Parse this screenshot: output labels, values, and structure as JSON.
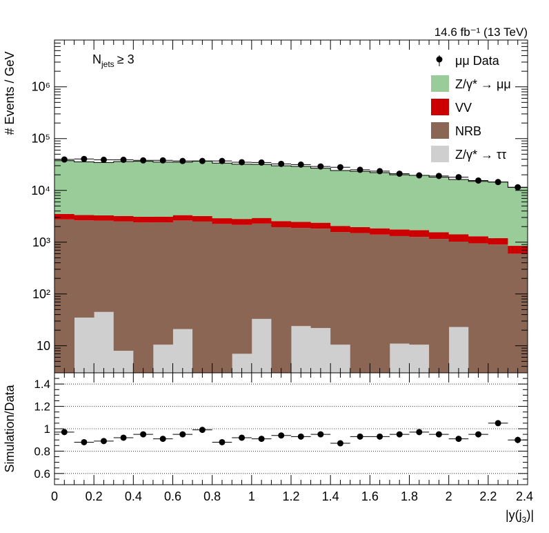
{
  "chart_data": [
    {
      "type": "bar",
      "stacked": true,
      "y_scale": "log",
      "luminosity_label": "14.6 fb⁻¹ (13 TeV)",
      "selection_label": "N_jets ≥ 3",
      "selection_main": "N",
      "selection_sub": "jets",
      "selection_tail": "≥ 3",
      "ylabel": "# Events / GeV",
      "xlim": [
        0,
        2.4
      ],
      "ylim": [
        3,
        8000000
      ],
      "y_ticks": [
        {
          "value": 10,
          "label": "10"
        },
        {
          "value": 100,
          "label": "10²"
        },
        {
          "value": 1000,
          "label": "10³"
        },
        {
          "value": 10000,
          "label": "10⁴"
        },
        {
          "value": 100000,
          "label": "10⁵"
        },
        {
          "value": 1000000,
          "label": "10⁶"
        }
      ],
      "bin_edges": [
        0,
        0.1,
        0.2,
        0.3,
        0.4,
        0.5,
        0.6,
        0.7,
        0.8,
        0.9,
        1.0,
        1.1,
        1.2,
        1.3,
        1.4,
        1.5,
        1.6,
        1.7,
        1.8,
        1.9,
        2.0,
        2.1,
        2.2,
        2.3,
        2.4
      ],
      "legend_position": "top-right",
      "legend": [
        {
          "label": "μμ Data",
          "kind": "marker"
        },
        {
          "label": "Z/γ* → μμ",
          "kind": "fill",
          "color": "#99cc99"
        },
        {
          "label": "VV",
          "kind": "fill",
          "color": "#cc0000"
        },
        {
          "label": "NRB",
          "kind": "fill",
          "color": "#8b6655"
        },
        {
          "label": "Z/γ* → ττ",
          "kind": "fill",
          "color": "#cfcfcf"
        }
      ],
      "series": [
        {
          "name": "Z/γ* → ττ",
          "color": "#cfcfcf",
          "values": [
            0,
            35,
            45,
            8,
            0,
            10.5,
            21,
            0,
            0,
            7,
            33,
            0,
            24,
            22,
            10.5,
            0,
            0,
            11,
            10.5,
            0,
            23,
            0,
            0,
            0
          ]
        },
        {
          "name": "NRB",
          "color": "#8b6655",
          "values": [
            2750,
            2600,
            2550,
            2500,
            2400,
            2400,
            2600,
            2500,
            2250,
            2150,
            2250,
            1950,
            1850,
            1800,
            1550,
            1500,
            1400,
            1300,
            1250,
            1150,
            1000,
            950,
            900,
            600
          ]
        },
        {
          "name": "VV",
          "color": "#cc0000",
          "values": [
            750,
            700,
            700,
            700,
            700,
            700,
            700,
            700,
            650,
            650,
            650,
            600,
            600,
            550,
            500,
            450,
            450,
            450,
            450,
            400,
            400,
            350,
            300,
            250
          ]
        },
        {
          "name": "Z/γ* → μμ",
          "color": "#99cc99",
          "values": [
            34000,
            32300,
            31300,
            32800,
            33300,
            32100,
            31700,
            33500,
            30700,
            29200,
            28800,
            27300,
            26600,
            24400,
            22100,
            21400,
            20200,
            18300,
            17800,
            16500,
            14800,
            13600,
            13300,
            10600
          ]
        }
      ],
      "data_points": [
        {
          "x": 0.05,
          "y": 39500
        },
        {
          "x": 0.15,
          "y": 40500
        },
        {
          "x": 0.25,
          "y": 39000
        },
        {
          "x": 0.35,
          "y": 39000
        },
        {
          "x": 0.45,
          "y": 38000
        },
        {
          "x": 0.55,
          "y": 38000
        },
        {
          "x": 0.65,
          "y": 37000
        },
        {
          "x": 0.75,
          "y": 37000
        },
        {
          "x": 0.85,
          "y": 37000
        },
        {
          "x": 0.95,
          "y": 35000
        },
        {
          "x": 1.05,
          "y": 34500
        },
        {
          "x": 1.15,
          "y": 32500
        },
        {
          "x": 1.25,
          "y": 31500
        },
        {
          "x": 1.35,
          "y": 29000
        },
        {
          "x": 1.45,
          "y": 28000
        },
        {
          "x": 1.55,
          "y": 25000
        },
        {
          "x": 1.65,
          "y": 23500
        },
        {
          "x": 1.75,
          "y": 21000
        },
        {
          "x": 1.85,
          "y": 19500
        },
        {
          "x": 1.95,
          "y": 19000
        },
        {
          "x": 2.05,
          "y": 18000
        },
        {
          "x": 2.15,
          "y": 15500
        },
        {
          "x": 2.25,
          "y": 14500
        },
        {
          "x": 2.35,
          "y": 11500
        }
      ]
    },
    {
      "type": "scatter",
      "ylabel": "Simulation/Data",
      "xlabel": "|y(j₃)|",
      "xlabel_main": "|y(j",
      "xlabel_sub": "3",
      "xlabel_tail": ")|",
      "xlim": [
        0,
        2.4
      ],
      "ylim": [
        0.5,
        1.5
      ],
      "x_ticks": [
        {
          "value": 0,
          "label": "0"
        },
        {
          "value": 0.2,
          "label": "0.2"
        },
        {
          "value": 0.4,
          "label": "0.4"
        },
        {
          "value": 0.6,
          "label": "0.6"
        },
        {
          "value": 0.8,
          "label": "0.8"
        },
        {
          "value": 1.0,
          "label": "1"
        },
        {
          "value": 1.2,
          "label": "1.2"
        },
        {
          "value": 1.4,
          "label": "1.4"
        },
        {
          "value": 1.6,
          "label": "1.6"
        },
        {
          "value": 1.8,
          "label": "1.8"
        },
        {
          "value": 2.0,
          "label": "2"
        },
        {
          "value": 2.2,
          "label": "2.2"
        },
        {
          "value": 2.4,
          "label": "2.4"
        }
      ],
      "y_ticks": [
        {
          "value": 0.6,
          "label": "0.6"
        },
        {
          "value": 0.8,
          "label": "0.8"
        },
        {
          "value": 1.0,
          "label": "1"
        },
        {
          "value": 1.2,
          "label": "1.2"
        },
        {
          "value": 1.4,
          "label": "1.4"
        }
      ],
      "grid_y": [
        0.6,
        0.8,
        1.0,
        1.2,
        1.4
      ],
      "points": [
        {
          "x": 0.05,
          "y": 0.97,
          "err": 0.02
        },
        {
          "x": 0.15,
          "y": 0.88,
          "err": 0.015
        },
        {
          "x": 0.25,
          "y": 0.89,
          "err": 0.015
        },
        {
          "x": 0.35,
          "y": 0.92,
          "err": 0.015
        },
        {
          "x": 0.45,
          "y": 0.95,
          "err": 0.015
        },
        {
          "x": 0.55,
          "y": 0.91,
          "err": 0.015
        },
        {
          "x": 0.65,
          "y": 0.95,
          "err": 0.015
        },
        {
          "x": 0.75,
          "y": 0.99,
          "err": 0.015
        },
        {
          "x": 0.85,
          "y": 0.88,
          "err": 0.015
        },
        {
          "x": 0.95,
          "y": 0.92,
          "err": 0.015
        },
        {
          "x": 1.05,
          "y": 0.91,
          "err": 0.015
        },
        {
          "x": 1.15,
          "y": 0.94,
          "err": 0.015
        },
        {
          "x": 1.25,
          "y": 0.93,
          "err": 0.015
        },
        {
          "x": 1.35,
          "y": 0.95,
          "err": 0.015
        },
        {
          "x": 1.45,
          "y": 0.87,
          "err": 0.015
        },
        {
          "x": 1.55,
          "y": 0.93,
          "err": 0.015
        },
        {
          "x": 1.65,
          "y": 0.93,
          "err": 0.015
        },
        {
          "x": 1.75,
          "y": 0.95,
          "err": 0.015
        },
        {
          "x": 1.85,
          "y": 0.97,
          "err": 0.02
        },
        {
          "x": 1.95,
          "y": 0.95,
          "err": 0.02
        },
        {
          "x": 2.05,
          "y": 0.91,
          "err": 0.02
        },
        {
          "x": 2.15,
          "y": 0.95,
          "err": 0.02
        },
        {
          "x": 2.25,
          "y": 1.05,
          "err": 0.025
        },
        {
          "x": 2.35,
          "y": 0.9,
          "err": 0.03
        }
      ]
    }
  ]
}
